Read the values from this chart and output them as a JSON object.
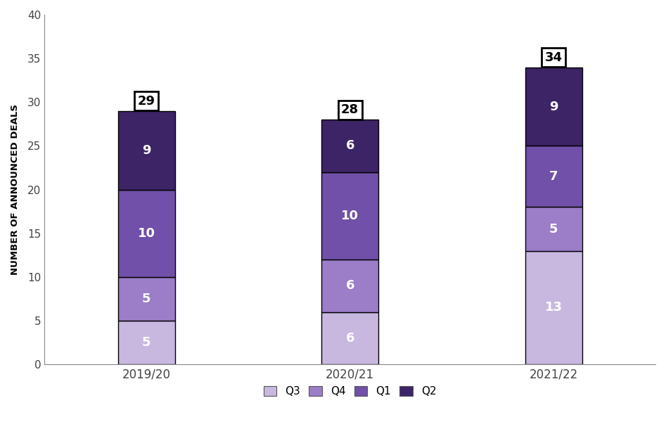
{
  "categories": [
    "2019/20",
    "2020/21",
    "2021/22"
  ],
  "segments": {
    "Q3": [
      5,
      6,
      13
    ],
    "Q4": [
      5,
      6,
      5
    ],
    "Q1": [
      10,
      10,
      7
    ],
    "Q2": [
      9,
      6,
      9
    ]
  },
  "totals": [
    29,
    28,
    34
  ],
  "colors": {
    "Q3": "#c8b8e0",
    "Q4": "#9b7dc8",
    "Q1": "#7050a8",
    "Q2": "#3d2466"
  },
  "ylabel": "NUMBER OF ANNOUNCED DEALS",
  "ylim": [
    0,
    40
  ],
  "yticks": [
    0,
    5,
    10,
    15,
    20,
    25,
    30,
    35,
    40
  ],
  "bar_width": 0.28,
  "label_fontsize": 13,
  "total_fontsize": 13,
  "legend_order": [
    "Q3",
    "Q4",
    "Q1",
    "Q2"
  ],
  "background_color": "#ffffff",
  "edge_color": "#000000"
}
